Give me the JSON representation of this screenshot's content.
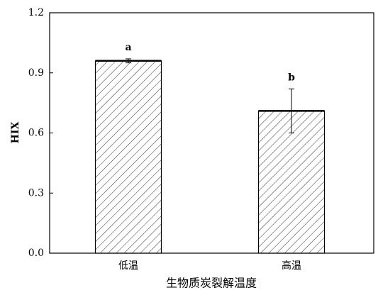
{
  "chart_data": {
    "type": "bar",
    "categories": [
      "低温",
      "高温"
    ],
    "values": [
      0.96,
      0.71
    ],
    "errors": [
      0.01,
      0.11
    ],
    "significance_labels": [
      "a",
      "b"
    ],
    "ylabel": "HIX",
    "xlabel": "生物质炭裂解温度",
    "ylim": [
      0,
      1.2
    ],
    "yticks": [
      {
        "value": 0,
        "label": "0.0"
      },
      0.3,
      0.6,
      0.9,
      1.2
    ]
  }
}
